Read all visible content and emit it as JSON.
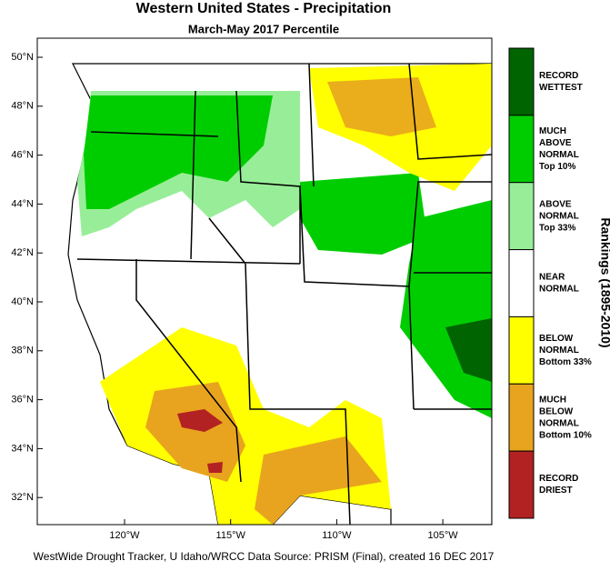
{
  "header": {
    "title": "Western United States - Precipitation",
    "subtitle": "March-May 2017 Percentile"
  },
  "map": {
    "lat_labels": [
      "50°N",
      "48°N",
      "46°N",
      "44°N",
      "42°N",
      "40°N",
      "38°N",
      "36°N",
      "34°N",
      "32°N"
    ],
    "lon_labels": [
      "120°W",
      "115°W",
      "110°W",
      "105°W"
    ]
  },
  "legend": {
    "axis_label": "Rankings (1895-2010)",
    "items": [
      {
        "color": "#006400",
        "lines": [
          "RECORD",
          "WETTEST"
        ]
      },
      {
        "color": "#00cd00",
        "lines": [
          "MUCH",
          "ABOVE",
          "NORMAL",
          "Top 10%"
        ]
      },
      {
        "color": "#98ee98",
        "lines": [
          "ABOVE",
          "NORMAL",
          "Top 33%"
        ]
      },
      {
        "color": "#ffffff",
        "lines": [
          "NEAR",
          "NORMAL"
        ]
      },
      {
        "color": "#ffff00",
        "lines": [
          "BELOW",
          "NORMAL",
          "Bottom 33%"
        ]
      },
      {
        "color": "#e8a41e",
        "lines": [
          "MUCH",
          "BELOW",
          "NORMAL",
          "Bottom 10%"
        ]
      },
      {
        "color": "#b22222",
        "lines": [
          "RECORD",
          "DRIEST"
        ]
      }
    ]
  },
  "footer": "WestWide Drought Tracker, U Idaho/WRCC Data Source: PRISM (Final), created 16 DEC 2017"
}
